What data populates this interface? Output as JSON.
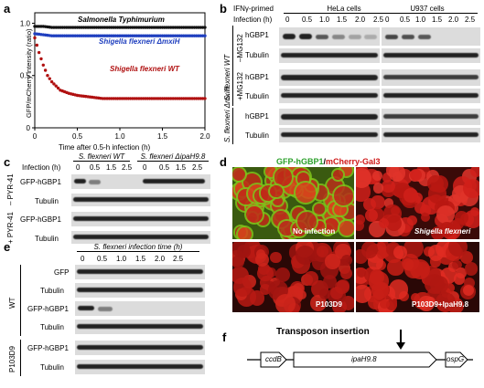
{
  "panel_labels": {
    "a": "a",
    "b": "b",
    "c": "c",
    "d": "d",
    "e": "e",
    "f": "f"
  },
  "panel_a": {
    "series_labels": [
      "Salmonella Typhimurium",
      "Shigella flexneri ΔmxiH",
      "Shigella flexneri WT"
    ],
    "ylabel": "GFP/mCherry intensity (ratio)",
    "xlabel": "Time after 0.5-h infection (h)",
    "xticks": [
      "0",
      "0.5",
      "1.0",
      "1.5",
      "2.0"
    ],
    "yticks": [
      "0",
      "0.5",
      "1.0"
    ],
    "colors": {
      "salmonella": "#111111",
      "mxiH": "#1f3fbf",
      "wt": "#b01010"
    }
  },
  "chart_data": {
    "type": "scatter",
    "title": "",
    "xlabel": "Time after 0.5-h infection (h)",
    "ylabel": "GFP/mCherry intensity (ratio)",
    "xlim": [
      0,
      2.0
    ],
    "ylim": [
      0,
      1.1
    ],
    "series": [
      {
        "name": "Salmonella Typhimurium",
        "x": [
          0,
          0.1,
          0.2,
          0.3,
          0.4,
          0.5,
          0.6,
          0.7,
          0.8,
          0.9,
          1.0,
          1.1,
          1.2,
          1.3,
          1.4,
          1.5,
          1.6,
          1.7,
          1.8,
          1.9,
          2.0
        ],
        "y": [
          0.97,
          0.97,
          0.96,
          0.96,
          0.96,
          0.96,
          0.96,
          0.96,
          0.96,
          0.96,
          0.96,
          0.96,
          0.96,
          0.96,
          0.96,
          0.96,
          0.96,
          0.96,
          0.96,
          0.96,
          0.96
        ]
      },
      {
        "name": "Shigella flexneri ΔmxiH",
        "x": [
          0,
          0.1,
          0.2,
          0.3,
          0.4,
          0.5,
          0.6,
          0.7,
          0.8,
          0.9,
          1.0,
          1.1,
          1.2,
          1.3,
          1.4,
          1.5,
          1.6,
          1.7,
          1.8,
          1.9,
          2.0
        ],
        "y": [
          0.9,
          0.89,
          0.88,
          0.88,
          0.88,
          0.88,
          0.88,
          0.88,
          0.88,
          0.88,
          0.88,
          0.88,
          0.88,
          0.88,
          0.88,
          0.88,
          0.88,
          0.88,
          0.88,
          0.88,
          0.88
        ]
      },
      {
        "name": "Shigella flexneri WT",
        "x": [
          0,
          0.05,
          0.1,
          0.15,
          0.2,
          0.25,
          0.3,
          0.4,
          0.5,
          0.6,
          0.7,
          0.8,
          0.9,
          1.0,
          1.2,
          1.4,
          1.6,
          1.8,
          2.0
        ],
        "y": [
          0.86,
          0.72,
          0.6,
          0.5,
          0.44,
          0.4,
          0.36,
          0.33,
          0.31,
          0.3,
          0.29,
          0.28,
          0.28,
          0.28,
          0.28,
          0.28,
          0.28,
          0.28,
          0.28
        ]
      }
    ]
  },
  "panel_b": {
    "primed": "IFNγ-primed",
    "infection": "Infection (h)",
    "hela": "HeLa cells",
    "u937": "U937 cells",
    "times": [
      "0",
      "0.5",
      "1.0",
      "1.5",
      "2.0",
      "2.5"
    ],
    "rows": [
      "hGBP1",
      "Tubulin",
      "hGBP1",
      "Tubulin",
      "hGBP1",
      "Tubulin"
    ],
    "group1": "–MG132",
    "group2": "+MG132",
    "strain_wt": "S. flexneri WT",
    "strain_mxiH": "S. flexneri ΔmxiH"
  },
  "panel_c": {
    "infection": "Infection (h)",
    "wt": "S. flexneri WT",
    "ipaH": "S. flexneri ΔipaH9.8",
    "times": [
      "0",
      "0.5",
      "1.5",
      "2.5",
      "0",
      "0.5",
      "1.5",
      "2.5"
    ],
    "rows": [
      "GFP-hGBP1",
      "Tubulin",
      "GFP-hGBP1",
      "Tubulin"
    ],
    "group1": "– PYR-41",
    "group2": "+ PYR-41"
  },
  "panel_d": {
    "title_green": "GFP-hGBP1",
    "title_sep": "/",
    "title_red": "mCherry-Gal3",
    "captions": [
      "No infection",
      "Shigella flexneri",
      "P103D9",
      "P103D9+IpaH9.8"
    ]
  },
  "panel_e": {
    "title": "S. flexneri infection time (h)",
    "times": [
      "0",
      "0.5",
      "1.0",
      "1.5",
      "2.0",
      "2.5"
    ],
    "rows": [
      "GFP",
      "Tubulin",
      "GFP-hGBP1",
      "Tubulin",
      "GFP-hGBP1",
      "Tubulin"
    ],
    "group1": "WT",
    "group2": "P103D9"
  },
  "panel_f": {
    "transposon": "Transposon insertion",
    "genes": [
      "ccdB",
      "ipaH9.8",
      "ospG"
    ]
  }
}
